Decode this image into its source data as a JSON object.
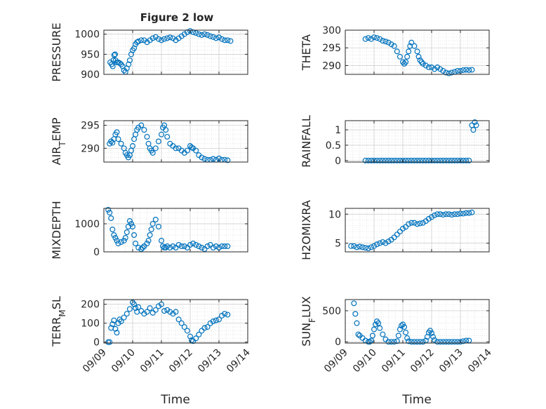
{
  "figure": {
    "title": "Figure 2 low"
  },
  "chart_data": [
    {
      "id": "pressure",
      "type": "scatter",
      "title": "Figure 2 low",
      "ylabel": "PRESSURE",
      "ylim": [
        900,
        1010
      ],
      "yticks": [
        900,
        950,
        1000
      ],
      "xlim": [
        9,
        14
      ],
      "xticks": [
        9,
        10,
        11,
        12,
        13,
        14
      ],
      "grid": true,
      "series": [
        {
          "x": [
            9.22,
            9.27,
            9.31,
            9.33,
            9.36,
            9.39,
            9.41,
            9.45,
            9.5,
            9.55,
            9.6,
            9.65,
            9.7,
            9.75,
            9.8,
            9.86,
            9.9,
            9.95,
            10,
            10.05,
            10.1,
            10.15,
            10.2,
            10.3,
            10.4,
            10.5,
            10.6,
            10.7,
            10.8,
            10.9,
            11,
            11.1,
            11.2,
            11.3,
            11.4,
            11.5,
            11.6,
            11.7,
            11.8,
            11.9,
            12,
            12.1,
            12.2,
            12.3,
            12.4,
            12.5,
            12.6,
            12.7,
            12.8,
            12.9,
            13,
            13.1,
            13.2,
            13.3,
            13.4
          ],
          "y": [
            930,
            925,
            920,
            935,
            948,
            950,
            935,
            930,
            930,
            928,
            925,
            920,
            910,
            906,
            915,
            925,
            935,
            950,
            960,
            965,
            975,
            980,
            982,
            985,
            985,
            980,
            985,
            990,
            993,
            988,
            985,
            988,
            990,
            992,
            990,
            985,
            990,
            995,
            1000,
            1005,
            1008,
            1005,
            1003,
            1000,
            998,
            1000,
            998,
            995,
            993,
            990,
            992,
            988,
            985,
            985,
            983
          ]
        }
      ]
    },
    {
      "id": "theta",
      "type": "scatter",
      "ylabel": "THETA",
      "ylim": [
        287.5,
        300
      ],
      "yticks": [
        290,
        295,
        300
      ],
      "xlim": [
        9,
        14
      ],
      "xticks": [
        9,
        10,
        11,
        12,
        13,
        14
      ],
      "grid": true,
      "series": [
        {
          "x": [
            9.7,
            9.8,
            9.9,
            10,
            10.1,
            10.2,
            10.3,
            10.4,
            10.5,
            10.6,
            10.7,
            10.8,
            10.9,
            11,
            11.05,
            11.1,
            11.15,
            11.2,
            11.25,
            11.3,
            11.4,
            11.5,
            11.55,
            11.6,
            11.65,
            11.7,
            11.8,
            11.9,
            12,
            12.1,
            12.2,
            12.3,
            12.4,
            12.5,
            12.6,
            12.7,
            12.8,
            12.9,
            13,
            13.1,
            13.2,
            13.3,
            13.4
          ],
          "y": [
            297.5,
            297.8,
            297.5,
            298,
            297.8,
            297.5,
            297,
            296.8,
            296.5,
            296,
            295.5,
            294,
            292.5,
            291,
            290.5,
            291,
            292.5,
            294,
            295.5,
            296.5,
            295.5,
            294,
            292.5,
            291.5,
            291,
            290.5,
            290,
            289.5,
            289.5,
            289,
            289.5,
            289,
            288.5,
            288,
            287.8,
            288,
            288.2,
            288.5,
            288.5,
            288.7,
            288.8,
            288.7,
            288.8
          ]
        }
      ]
    },
    {
      "id": "air-temp",
      "type": "scatter",
      "ylabel": "AIR_TEMP",
      "ylim": [
        287,
        296
      ],
      "yticks": [
        290,
        295
      ],
      "xlim": [
        9,
        14
      ],
      "xticks": [
        9,
        10,
        11,
        12,
        13,
        14
      ],
      "grid": true,
      "series": [
        {
          "x": [
            9.2,
            9.25,
            9.3,
            9.35,
            9.4,
            9.45,
            9.5,
            9.6,
            9.7,
            9.75,
            9.8,
            9.85,
            9.9,
            9.95,
            10,
            10.05,
            10.1,
            10.15,
            10.2,
            10.3,
            10.4,
            10.5,
            10.55,
            10.6,
            10.65,
            10.7,
            10.8,
            10.9,
            11,
            11.05,
            11.1,
            11.15,
            11.2,
            11.3,
            11.4,
            11.5,
            11.6,
            11.7,
            11.8,
            11.9,
            12,
            12.05,
            12.1,
            12.2,
            12.3,
            12.4,
            12.5,
            12.6,
            12.7,
            12.8,
            12.9,
            13,
            13.1,
            13.2,
            13.3
          ],
          "y": [
            291,
            291.5,
            291.2,
            292,
            293,
            293.5,
            292,
            291,
            290,
            289,
            288.5,
            288,
            288.5,
            289.5,
            290.5,
            292,
            293,
            294,
            294.5,
            295,
            294,
            292.5,
            291,
            290,
            289.5,
            289,
            290,
            291.5,
            293,
            294.5,
            295,
            294,
            292.5,
            291,
            290.5,
            290,
            290,
            289.5,
            289,
            289.5,
            290.5,
            290.2,
            290,
            289.5,
            288.5,
            288,
            287.7,
            287.5,
            287.5,
            287.7,
            287.5,
            287.8,
            287.5,
            287.5,
            287.4
          ]
        }
      ]
    },
    {
      "id": "rainfall",
      "type": "scatter",
      "ylabel": "RAINFALL",
      "ylim": [
        -0.05,
        1.3
      ],
      "yticks": [
        0,
        0.5,
        1
      ],
      "xlim": [
        9,
        14
      ],
      "xticks": [
        9,
        10,
        11,
        12,
        13,
        14
      ],
      "grid": true,
      "series": [
        {
          "x": [
            9.7,
            9.8,
            9.9,
            10,
            10.1,
            10.2,
            10.3,
            10.4,
            10.5,
            10.6,
            10.7,
            10.8,
            10.9,
            11,
            11.1,
            11.2,
            11.3,
            11.4,
            11.5,
            11.6,
            11.7,
            11.8,
            11.9,
            12,
            12.1,
            12.2,
            12.3,
            12.4,
            12.5,
            12.6,
            12.7,
            12.8,
            12.9,
            13,
            13.1,
            13.2,
            13.3,
            13.4,
            13.45,
            13.5,
            13.55
          ],
          "y": [
            0,
            0,
            0,
            0,
            0,
            0,
            0,
            0,
            0,
            0,
            0,
            0,
            0,
            0,
            0,
            0,
            0,
            0,
            0,
            0,
            0,
            0,
            0,
            0,
            0,
            0,
            0,
            0,
            0,
            0,
            0,
            0,
            0,
            0,
            0,
            0,
            0,
            1.15,
            1.0,
            1.25,
            1.15
          ]
        }
      ]
    },
    {
      "id": "mixdepth",
      "type": "scatter",
      "ylabel": "MIXDEPTH",
      "ylim": [
        0,
        1550
      ],
      "yticks": [
        0,
        1000
      ],
      "xlim": [
        9,
        14
      ],
      "xticks": [
        9,
        10,
        11,
        12,
        13,
        14
      ],
      "grid": true,
      "series": [
        {
          "x": [
            9.15,
            9.2,
            9.25,
            9.3,
            9.35,
            9.4,
            9.45,
            9.5,
            9.6,
            9.7,
            9.75,
            9.8,
            9.85,
            9.9,
            9.95,
            10,
            10.05,
            10.1,
            10.2,
            10.3,
            10.35,
            10.4,
            10.5,
            10.55,
            10.6,
            10.65,
            10.7,
            10.8,
            10.9,
            11,
            11.05,
            11.1,
            11.15,
            11.2,
            11.3,
            11.4,
            11.5,
            11.6,
            11.7,
            11.8,
            11.9,
            12,
            12.1,
            12.2,
            12.3,
            12.4,
            12.5,
            12.6,
            12.7,
            12.8,
            12.9,
            13,
            13.1,
            13.2,
            13.3
          ],
          "y": [
            1500,
            1400,
            1200,
            800,
            600,
            500,
            400,
            300,
            350,
            400,
            500,
            700,
            900,
            1100,
            1000,
            900,
            600,
            300,
            150,
            100,
            150,
            200,
            300,
            400,
            600,
            800,
            1000,
            1150,
            900,
            400,
            200,
            150,
            150,
            200,
            150,
            200,
            150,
            250,
            200,
            200,
            150,
            250,
            300,
            250,
            200,
            150,
            100,
            200,
            250,
            150,
            200,
            150,
            200,
            200,
            200
          ]
        }
      ]
    },
    {
      "id": "h2omixra",
      "type": "scatter",
      "ylabel": "H2OMIXRA",
      "ylim": [
        3.5,
        11
      ],
      "yticks": [
        5,
        10
      ],
      "xlim": [
        9,
        14
      ],
      "xticks": [
        9,
        10,
        11,
        12,
        13,
        14
      ],
      "grid": true,
      "series": [
        {
          "x": [
            9.2,
            9.3,
            9.4,
            9.5,
            9.6,
            9.7,
            9.8,
            9.9,
            10,
            10.1,
            10.2,
            10.3,
            10.4,
            10.5,
            10.6,
            10.7,
            10.8,
            10.9,
            11,
            11.1,
            11.2,
            11.3,
            11.4,
            11.5,
            11.6,
            11.7,
            11.8,
            11.9,
            12,
            12.1,
            12.2,
            12.3,
            12.4,
            12.5,
            12.6,
            12.7,
            12.8,
            12.9,
            13,
            13.1,
            13.2,
            13.3,
            13.4
          ],
          "y": [
            4.5,
            4.5,
            4.3,
            4.4,
            4.3,
            4.2,
            4.1,
            4.3,
            4.5,
            4.8,
            5.0,
            5.2,
            5.0,
            5.3,
            5.6,
            6.0,
            6.5,
            7.0,
            7.5,
            7.8,
            8.3,
            8.5,
            8.5,
            8.3,
            8.4,
            8.5,
            8.8,
            9.2,
            9.5,
            9.8,
            10.0,
            10.0,
            9.9,
            10.0,
            10.0,
            9.9,
            10.0,
            10.0,
            10.1,
            10.1,
            10.2,
            10.2,
            10.3
          ]
        }
      ]
    },
    {
      "id": "terr-msl",
      "type": "scatter",
      "ylabel": "TERR_MSL",
      "ylim": [
        -5,
        225
      ],
      "yticks": [
        0,
        100,
        200
      ],
      "xlim": [
        9,
        14
      ],
      "xticks": [
        9,
        10,
        11,
        12,
        13,
        14
      ],
      "grid": true,
      "series": [
        {
          "x": [
            9.15,
            9.2,
            9.25,
            9.3,
            9.35,
            9.4,
            9.45,
            9.5,
            9.55,
            9.6,
            9.7,
            9.8,
            9.9,
            10,
            10.05,
            10.1,
            10.15,
            10.2,
            10.3,
            10.4,
            10.5,
            10.6,
            10.7,
            10.8,
            10.9,
            11,
            11.1,
            11.2,
            11.3,
            11.4,
            11.5,
            11.6,
            11.7,
            11.8,
            11.9,
            12,
            12.05,
            12.1,
            12.2,
            12.3,
            12.4,
            12.5,
            12.6,
            12.7,
            12.8,
            12.9,
            13,
            13.1,
            13.2,
            13.3
          ],
          "y": [
            0,
            0,
            75,
            95,
            115,
            70,
            50,
            100,
            120,
            110,
            130,
            150,
            175,
            210,
            200,
            180,
            160,
            185,
            165,
            150,
            160,
            180,
            155,
            170,
            190,
            200,
            165,
            170,
            160,
            150,
            160,
            120,
            100,
            80,
            60,
            30,
            10,
            5,
            20,
            40,
            60,
            75,
            80,
            100,
            110,
            115,
            120,
            140,
            150,
            145
          ]
        }
      ]
    },
    {
      "id": "sun-flux",
      "type": "scatter",
      "ylabel": "SUN_FLUX",
      "ylim": [
        -20,
        680
      ],
      "yticks": [
        0,
        500
      ],
      "xlim": [
        9,
        14
      ],
      "xticks": [
        9,
        10,
        11,
        12,
        13,
        14
      ],
      "grid": true,
      "series": [
        {
          "x": [
            9.3,
            9.35,
            9.4,
            9.45,
            9.5,
            9.6,
            9.7,
            9.8,
            9.85,
            9.9,
            9.95,
            10,
            10.05,
            10.1,
            10.15,
            10.2,
            10.3,
            10.4,
            10.5,
            10.6,
            10.7,
            10.8,
            10.85,
            10.9,
            10.95,
            11,
            11.05,
            11.1,
            11.15,
            11.2,
            11.3,
            11.4,
            11.5,
            11.6,
            11.7,
            11.8,
            11.85,
            11.9,
            11.95,
            12,
            12.05,
            12.1,
            12.2,
            12.3,
            12.4,
            12.5,
            12.6,
            12.7,
            12.8,
            12.9,
            13,
            13.1,
            13.2,
            13.3
          ],
          "y": [
            620,
            450,
            300,
            120,
            100,
            60,
            20,
            0,
            0,
            20,
            100,
            200,
            280,
            330,
            300,
            220,
            120,
            40,
            0,
            0,
            0,
            10,
            100,
            200,
            260,
            280,
            240,
            150,
            60,
            10,
            0,
            0,
            0,
            0,
            0,
            20,
            80,
            150,
            180,
            140,
            80,
            30,
            0,
            0,
            0,
            0,
            0,
            0,
            0,
            0,
            0,
            10,
            20,
            20
          ]
        }
      ]
    }
  ],
  "x_tick_labels": [
    "09/09",
    "09/10",
    "09/11",
    "09/12",
    "09/13",
    "09/14"
  ],
  "x_axis_label": "Time",
  "colors": {
    "marker": "#0072BD",
    "axes": "#262626",
    "grid": "#b8b8b8"
  }
}
